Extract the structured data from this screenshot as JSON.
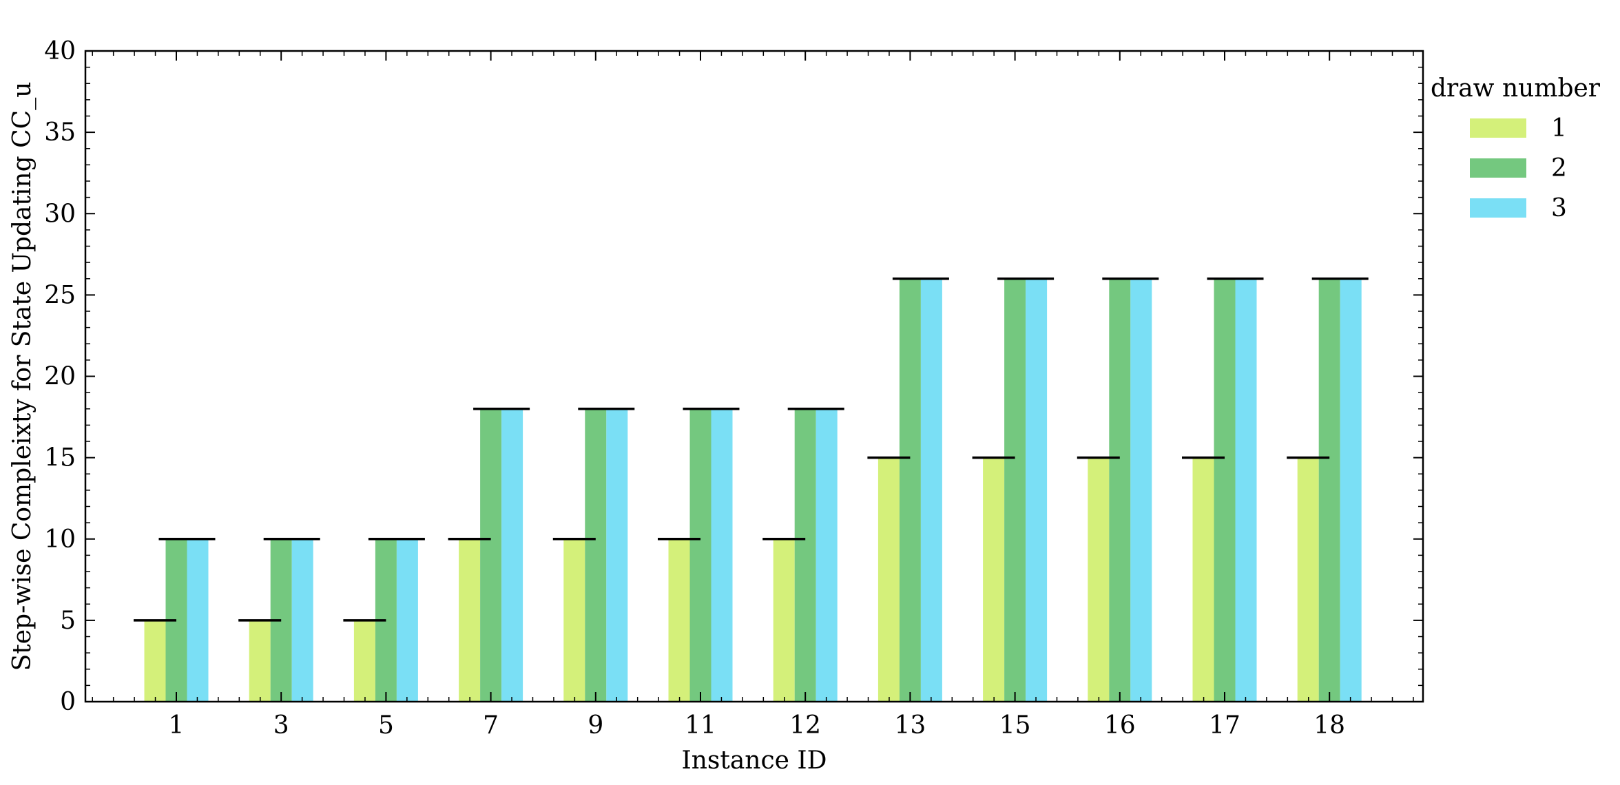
{
  "chart_data": {
    "type": "bar",
    "title": "",
    "xlabel": "Instance ID",
    "ylabel": "Step-wise Compleixty for State Updating CC_u",
    "categories": [
      "1",
      "3",
      "5",
      "7",
      "9",
      "11",
      "12",
      "13",
      "15",
      "16",
      "17",
      "18"
    ],
    "ylim": [
      0,
      40
    ],
    "yticks": [
      0,
      5,
      10,
      15,
      20,
      25,
      30,
      35,
      40
    ],
    "legend": {
      "title": "draw number",
      "placement": "outside right"
    },
    "series": [
      {
        "name": "1",
        "color": "#d4f07a",
        "values": [
          5,
          5,
          5,
          10,
          10,
          10,
          10,
          15,
          15,
          15,
          15,
          15
        ]
      },
      {
        "name": "2",
        "color": "#74c87f",
        "values": [
          10,
          10,
          10,
          18,
          18,
          18,
          18,
          26,
          26,
          26,
          26,
          26
        ]
      },
      {
        "name": "3",
        "color": "#7adff5",
        "values": [
          10,
          10,
          10,
          18,
          18,
          18,
          18,
          26,
          26,
          26,
          26,
          26
        ]
      }
    ]
  }
}
